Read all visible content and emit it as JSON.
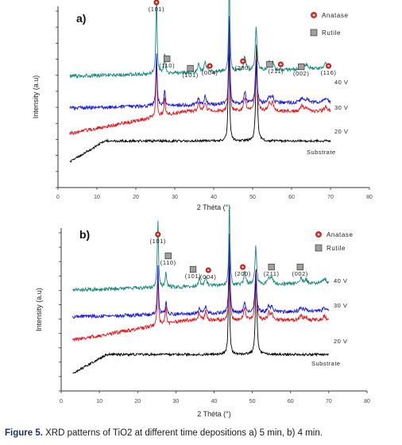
{
  "caption": {
    "label": "Figure 5.",
    "text": " XRD patterns of TiO2 at different time depositions a) 5 min, b) 4 min."
  },
  "legend": {
    "anatase": "Anatase",
    "rutile": "Rutile",
    "anatase_color": "#e03030",
    "rutile_color": "#a0a0a0"
  },
  "chart_data": [
    {
      "type": "line",
      "panel_label": "a)",
      "xlabel": "2 Théta (°)",
      "ylabel": "Intensity (a.u)",
      "xlim": [
        0,
        80
      ],
      "x_ticks": [
        0,
        10,
        20,
        30,
        40,
        50,
        60,
        70,
        80
      ],
      "grid": false,
      "legend_position": "top-right",
      "series": [
        {
          "name": "Substrate",
          "color": "#000000"
        },
        {
          "name": "20 V",
          "color": "#e8141c"
        },
        {
          "name": "30 V",
          "color": "#1515e6"
        },
        {
          "name": "40 V",
          "color": "#17867a"
        }
      ],
      "anatase_peaks": [
        25.3,
        37.8,
        48.0,
        53.9,
        55.1,
        62.7,
        68.8
      ],
      "rutile_peaks": [
        27.4,
        36.1,
        41.2,
        44.0,
        54.3,
        56.6,
        62.8,
        64.0,
        69.0
      ],
      "substrate_peaks": [
        43.9,
        51.0
      ],
      "annotations": [
        {
          "text": "(101)",
          "x": 25.3,
          "marker": "anatase"
        },
        {
          "text": "(110)",
          "x": 28.0,
          "marker": "rutile"
        },
        {
          "text": "(101)",
          "x": 34.0,
          "marker": "rutile"
        },
        {
          "text": "(004)",
          "x": 39.0,
          "marker": "anatase"
        },
        {
          "text": "(200)",
          "x": 47.5,
          "marker": "anatase"
        },
        {
          "text": "(211)",
          "x": 56.0,
          "marker": "both"
        },
        {
          "text": "(002)",
          "x": 62.5,
          "marker": "rutile"
        },
        {
          "text": "(116)",
          "x": 69.5,
          "marker": "anatase"
        }
      ]
    },
    {
      "type": "line",
      "panel_label": "b)",
      "xlabel": "2 Théta (°)",
      "ylabel": "Intensity (a.u)",
      "xlim": [
        0,
        80
      ],
      "x_ticks": [
        0,
        10,
        20,
        30,
        40,
        50,
        60,
        70,
        80
      ],
      "grid": false,
      "legend_position": "top-right",
      "series": [
        {
          "name": "Substrate",
          "color": "#000000"
        },
        {
          "name": "20 V",
          "color": "#e8141c"
        },
        {
          "name": "30 V",
          "color": "#1515e6"
        },
        {
          "name": "40 V",
          "color": "#17867a"
        }
      ],
      "anatase_peaks": [
        25.3,
        37.8,
        48.0,
        53.9,
        55.1,
        62.7,
        68.8
      ],
      "rutile_peaks": [
        27.4,
        36.1,
        41.2,
        44.0,
        54.3,
        56.6,
        62.8,
        64.0,
        69.0
      ],
      "substrate_peaks": [
        43.9,
        51.0
      ],
      "annotations": [
        {
          "text": "(101)",
          "x": 25.3,
          "marker": "anatase"
        },
        {
          "text": "(110)",
          "x": 28.0,
          "marker": "rutile"
        },
        {
          "text": "(101)",
          "x": 34.5,
          "marker": "rutile"
        },
        {
          "text": "(004)",
          "x": 38.5,
          "marker": "anatase"
        },
        {
          "text": "(200)",
          "x": 47.5,
          "marker": "anatase"
        },
        {
          "text": "(211)",
          "x": 55.0,
          "marker": "rutile"
        },
        {
          "text": "(002)",
          "x": 62.5,
          "marker": "rutile"
        }
      ]
    }
  ]
}
